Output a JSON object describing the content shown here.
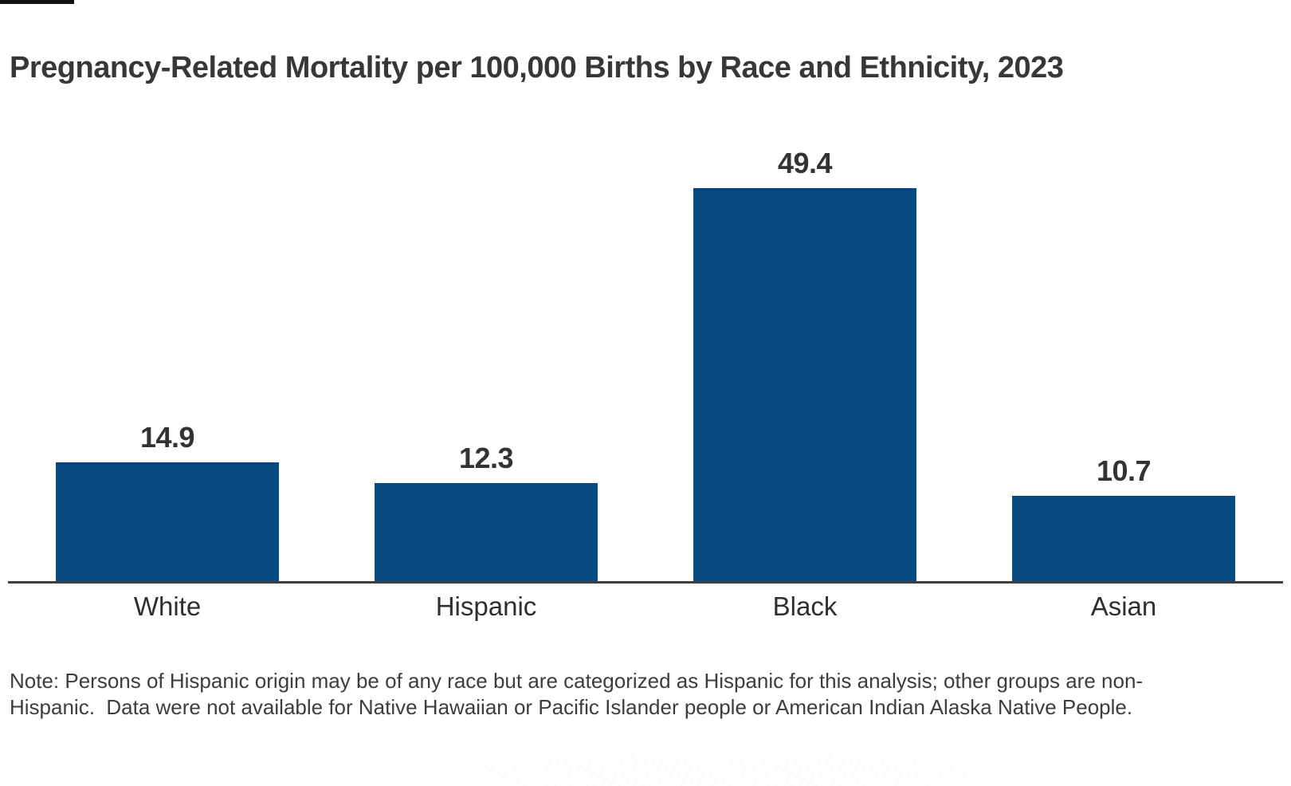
{
  "title": "Pregnancy-Related Mortality per 100,000 Births by Race and Ethnicity, 2023",
  "chart_data": {
    "type": "bar",
    "title": "Pregnancy-Related Mortality per 100,000 Births by Race and Ethnicity, 2023",
    "categories": [
      "White",
      "Hispanic",
      "Black",
      "Asian"
    ],
    "values": [
      14.9,
      12.3,
      49.4,
      10.7
    ],
    "data_labels": [
      "14.9",
      "12.3",
      "49.4",
      "10.7"
    ],
    "xlabel": "",
    "ylabel": "",
    "ylim": [
      0,
      49.4
    ],
    "grid": false,
    "legend": "none",
    "bar_color": "#084a80",
    "axis_color": "#3f3f3f"
  },
  "note": {
    "lines": [
      "Note: Persons of Hispanic origin may be of any race but are categorized as Hispanic for this analysis; other groups are non-",
      "Hispanic.  Data were not available for Native Hawaiian or Pacific Islander people or American Indian Alaska Native People."
    ]
  }
}
